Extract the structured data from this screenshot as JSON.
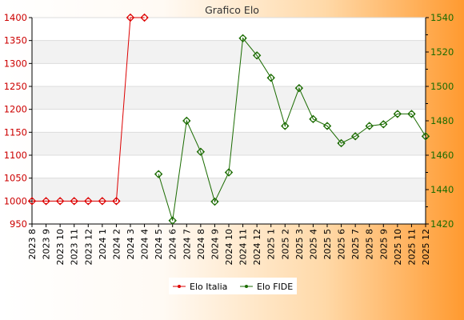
{
  "chart_data": {
    "type": "line",
    "title": "Grafico Elo",
    "categories": [
      "2023 8",
      "2023 9",
      "2023 10",
      "2023 11",
      "2023 12",
      "2024 1",
      "2024 2",
      "2024 3",
      "2024 4",
      "2024 5",
      "2024 6",
      "2024 7",
      "2024 8",
      "2024 9",
      "2024 10",
      "2024 11",
      "2024 12",
      "2025 1",
      "2025 2",
      "2025 3",
      "2025 4",
      "2025 5",
      "2025 6",
      "2025 7",
      "2025 8",
      "2025 9",
      "2025 10",
      "2025 11",
      "2025 12"
    ],
    "y_left": {
      "min": 950,
      "max": 1400,
      "ticks": [
        950,
        1000,
        1050,
        1100,
        1150,
        1200,
        1250,
        1300,
        1350,
        1400
      ]
    },
    "y_right": {
      "min": 1420,
      "max": 1540,
      "ticks": [
        1420,
        1440,
        1460,
        1480,
        1500,
        1520,
        1540
      ]
    },
    "series": [
      {
        "name": "Elo Italia",
        "axis": "left",
        "color": "#dd0000",
        "values": [
          1000,
          1000,
          1000,
          1000,
          1000,
          1000,
          1000,
          1400,
          1400,
          null,
          null,
          null,
          null,
          null,
          null,
          null,
          null,
          null,
          null,
          null,
          null,
          null,
          null,
          null,
          null,
          null,
          null,
          null,
          null
        ]
      },
      {
        "name": "Elo FIDE",
        "axis": "right",
        "color": "#1a6b00",
        "values": [
          null,
          null,
          null,
          null,
          null,
          null,
          null,
          null,
          null,
          1449,
          1422,
          1480,
          1462,
          1433,
          1450,
          1528,
          1518,
          1505,
          1477,
          1499,
          1481,
          1477,
          1467,
          1471,
          1477,
          1478,
          1484,
          1484,
          1471
        ]
      }
    ],
    "grid": true,
    "legend": "bottom-center"
  }
}
